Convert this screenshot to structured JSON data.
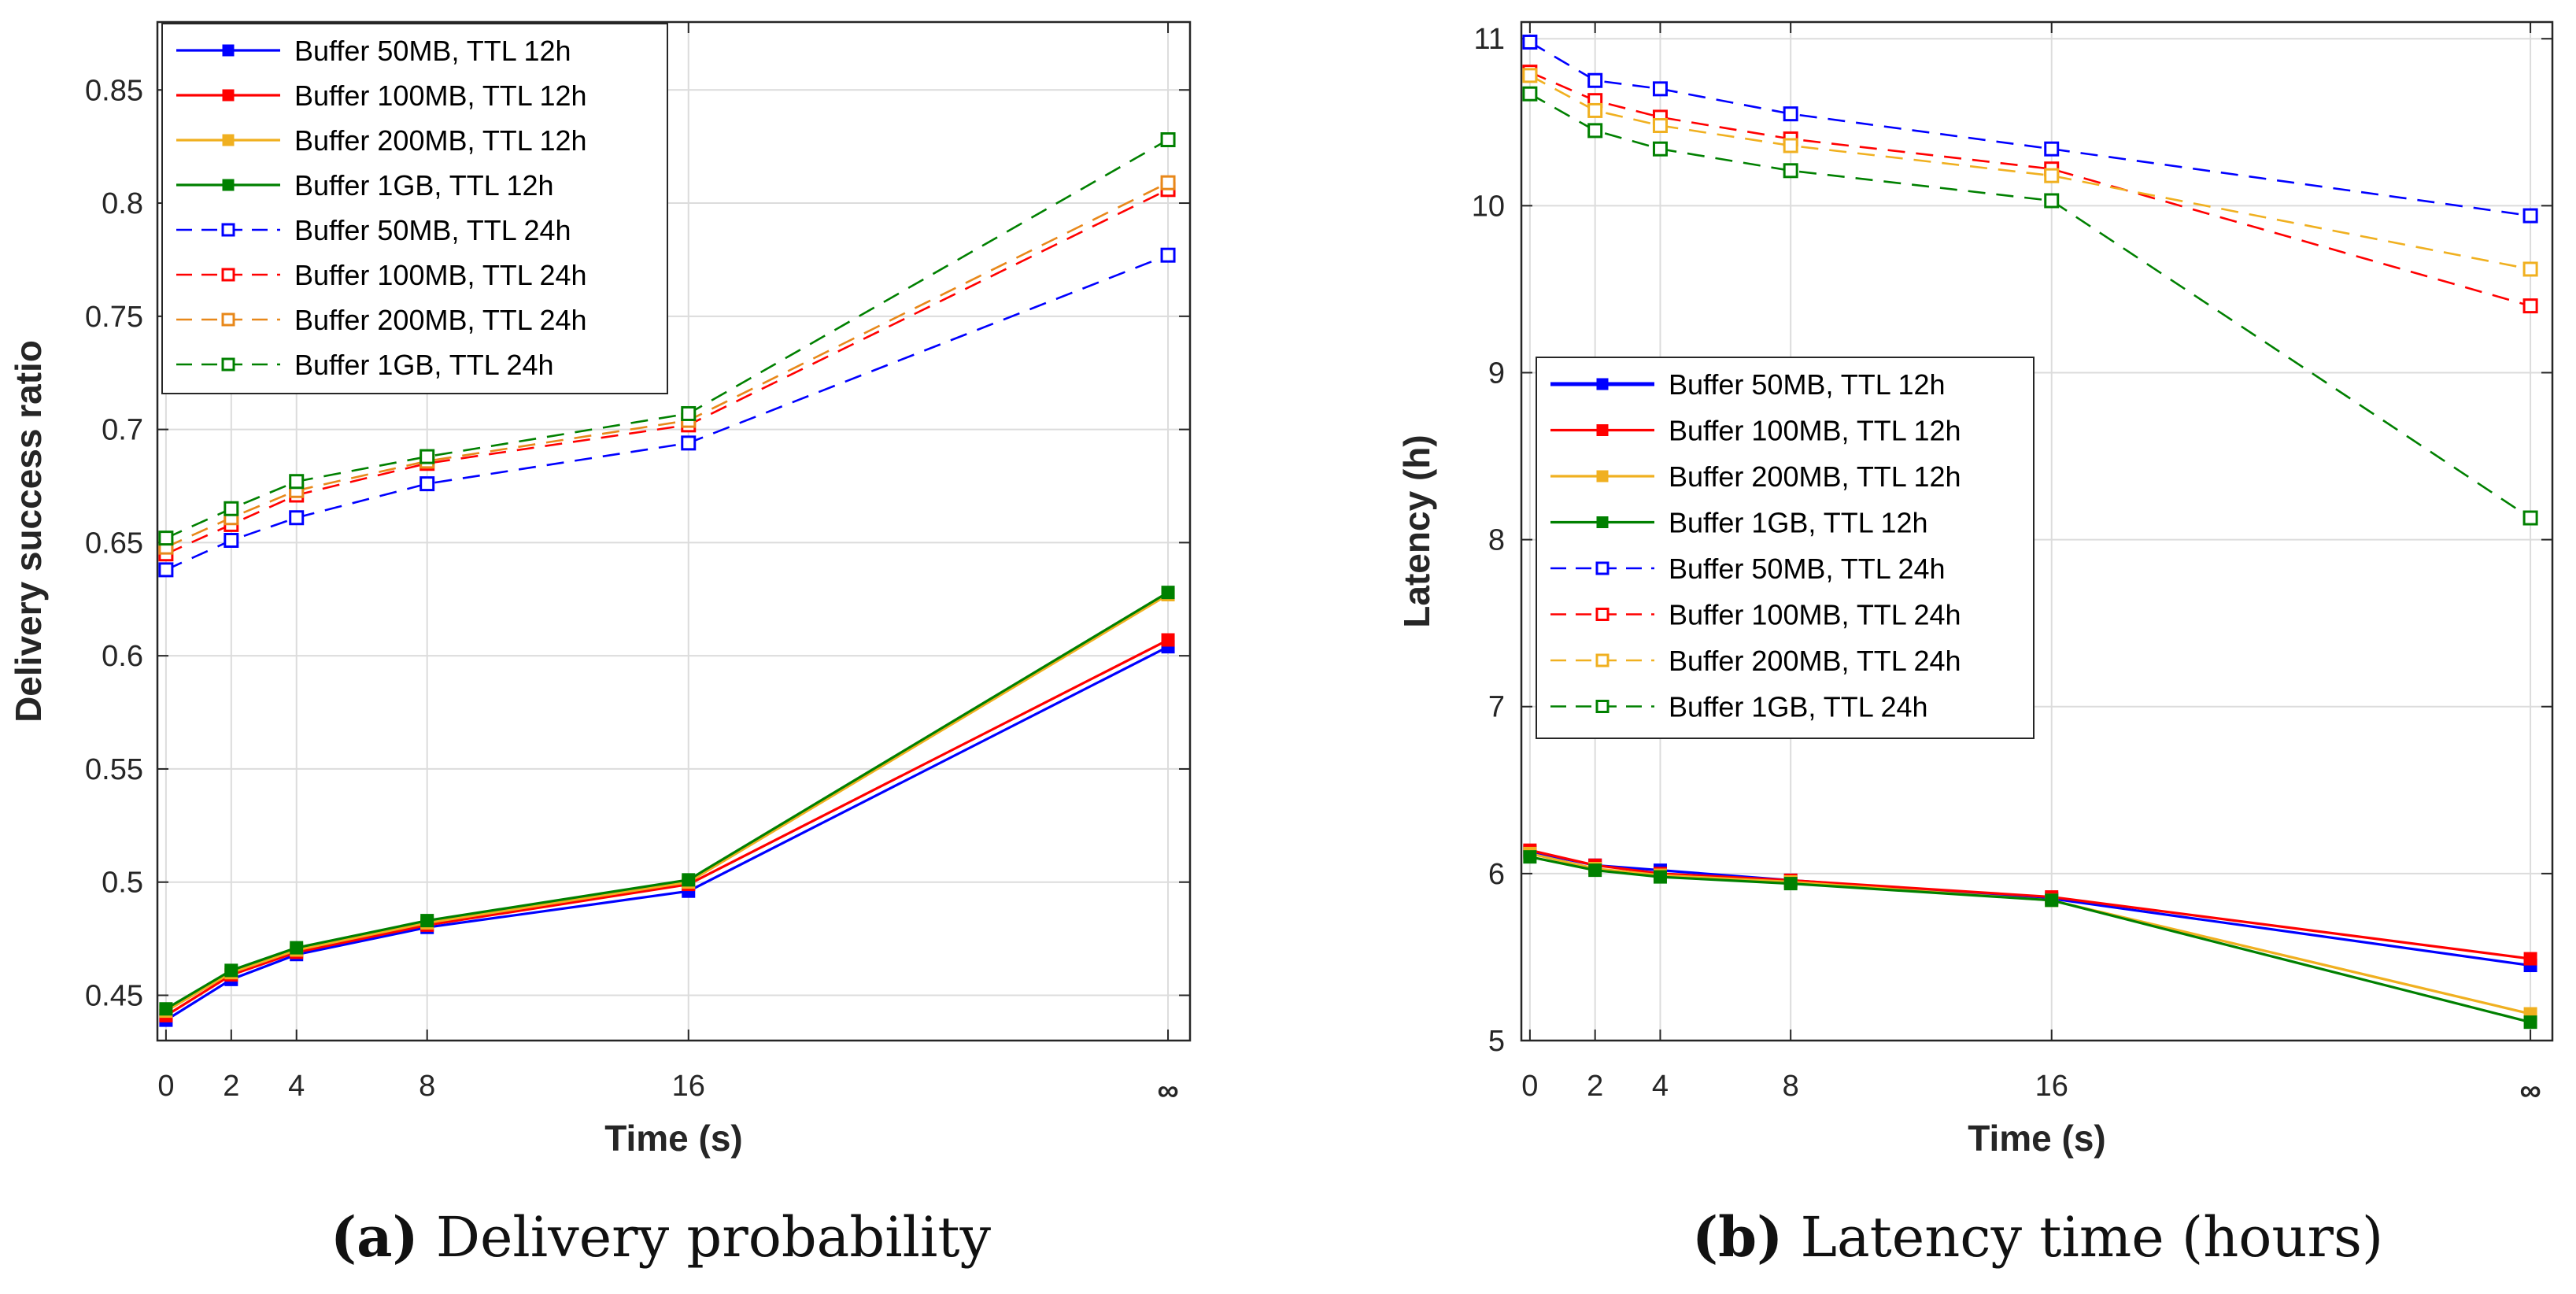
{
  "captions": [
    {
      "tag": "(a)",
      "text": "Delivery probability"
    },
    {
      "tag": "(b)",
      "text": "Latency time (hours)"
    }
  ],
  "chart_data": [
    {
      "type": "line",
      "xlabel": "Time (s)",
      "ylabel": "Delivery success ratio",
      "x_tick_labels": [
        "0",
        "2",
        "4",
        "8",
        "16",
        "∞"
      ],
      "x": [
        0,
        2,
        4,
        8,
        16,
        "∞"
      ],
      "ylim": [
        0.43,
        0.88
      ],
      "yticks": [
        0.45,
        0.5,
        0.55,
        0.6,
        0.65,
        0.7,
        0.75,
        0.8,
        0.85
      ],
      "grid": true,
      "legend_position": "top-left",
      "series": [
        {
          "name": "Buffer 50MB, TTL 12h",
          "color": "#0000ff",
          "style": "solid",
          "marker": "filled-square",
          "values": [
            0.439,
            0.457,
            0.468,
            0.48,
            0.496,
            0.604
          ]
        },
        {
          "name": "Buffer 100MB, TTL 12h",
          "color": "#ff0000",
          "style": "solid",
          "marker": "filled-square",
          "values": [
            0.441,
            0.459,
            0.469,
            0.481,
            0.499,
            0.607
          ]
        },
        {
          "name": "Buffer 200MB, TTL 12h",
          "color": "#f0b020",
          "style": "solid",
          "marker": "filled-square",
          "values": [
            0.443,
            0.46,
            0.47,
            0.482,
            0.5,
            0.627
          ]
        },
        {
          "name": "Buffer 1GB, TTL 12h",
          "color": "#008000",
          "style": "solid",
          "marker": "filled-square",
          "values": [
            0.444,
            0.461,
            0.471,
            0.483,
            0.501,
            0.628
          ]
        },
        {
          "name": "Buffer 50MB, TTL 24h",
          "color": "#0000ff",
          "style": "dashed",
          "marker": "open-square",
          "values": [
            0.638,
            0.651,
            0.661,
            0.676,
            0.694,
            0.777
          ]
        },
        {
          "name": "Buffer 100MB, TTL 24h",
          "color": "#ff0000",
          "style": "dashed",
          "marker": "open-square",
          "values": [
            0.645,
            0.658,
            0.671,
            0.685,
            0.702,
            0.806
          ]
        },
        {
          "name": "Buffer 200MB, TTL 24h",
          "color": "#e8881a",
          "style": "dashed",
          "marker": "open-square",
          "values": [
            0.648,
            0.661,
            0.673,
            0.686,
            0.704,
            0.809
          ]
        },
        {
          "name": "Buffer 1GB, TTL 24h",
          "color": "#008000",
          "style": "dashed",
          "marker": "open-square",
          "values": [
            0.652,
            0.665,
            0.677,
            0.688,
            0.707,
            0.828
          ]
        }
      ]
    },
    {
      "type": "line",
      "xlabel": "Time (s)",
      "ylabel": "Latency (h)",
      "x_tick_labels": [
        "0",
        "2",
        "4",
        "8",
        "16",
        "∞"
      ],
      "x": [
        0,
        2,
        4,
        8,
        16,
        "∞"
      ],
      "ylim": [
        5,
        11.1
      ],
      "yticks": [
        5,
        6,
        7,
        8,
        9,
        10,
        11
      ],
      "grid": true,
      "legend_position": "middle-left",
      "series": [
        {
          "name": "Buffer 50MB, TTL 12h",
          "color": "#0000ff",
          "style": "solid",
          "marker": "filled-square",
          "values": [
            6.13,
            6.05,
            6.02,
            5.96,
            5.85,
            5.45
          ]
        },
        {
          "name": "Buffer 100MB, TTL 12h",
          "color": "#ff0000",
          "style": "solid",
          "marker": "filled-square",
          "values": [
            6.14,
            6.05,
            6.0,
            5.96,
            5.86,
            5.49
          ]
        },
        {
          "name": "Buffer 200MB, TTL 12h",
          "color": "#f0b020",
          "style": "solid",
          "marker": "filled-square",
          "values": [
            6.12,
            6.03,
            5.99,
            5.95,
            5.84,
            5.16
          ]
        },
        {
          "name": "Buffer 1GB, TTL 12h",
          "color": "#008000",
          "style": "solid",
          "marker": "filled-square",
          "values": [
            6.1,
            6.02,
            5.98,
            5.94,
            5.84,
            5.11
          ]
        },
        {
          "name": "Buffer 50MB, TTL 24h",
          "color": "#0000ff",
          "style": "dashed",
          "marker": "open-square",
          "values": [
            10.98,
            10.75,
            10.7,
            10.55,
            10.34,
            9.94
          ]
        },
        {
          "name": "Buffer 100MB, TTL 24h",
          "color": "#ff0000",
          "style": "dashed",
          "marker": "open-square",
          "values": [
            10.8,
            10.63,
            10.53,
            10.4,
            10.22,
            9.4
          ]
        },
        {
          "name": "Buffer 200MB, TTL 24h",
          "color": "#f0b020",
          "style": "dashed",
          "marker": "open-square",
          "values": [
            10.78,
            10.57,
            10.48,
            10.36,
            10.18,
            9.62
          ]
        },
        {
          "name": "Buffer 1GB, TTL 24h",
          "color": "#008000",
          "style": "dashed",
          "marker": "open-square",
          "values": [
            10.67,
            10.45,
            10.34,
            10.21,
            10.03,
            8.13
          ]
        }
      ]
    }
  ]
}
